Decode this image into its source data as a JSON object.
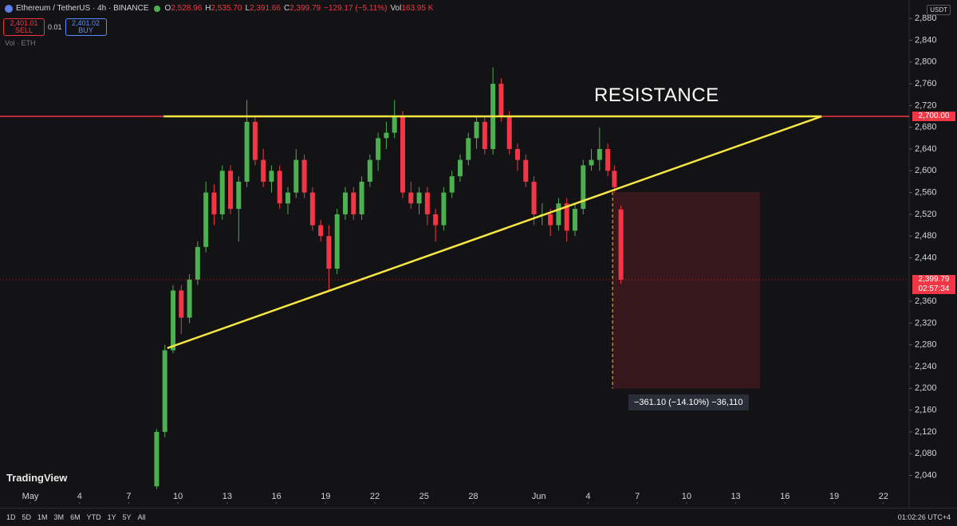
{
  "header": {
    "symbol": "Ethereum / TetherUS · 4h · BINANCE",
    "ohlc": [
      {
        "key": "O",
        "value": "2,528.96"
      },
      {
        "key": "H",
        "value": "2,535.70"
      },
      {
        "key": "L",
        "value": "2,391.66"
      },
      {
        "key": "C",
        "value": "2,399.79"
      }
    ],
    "change": "−129.17 (−5.11%)",
    "vol_key": "Vol",
    "vol": "163.95 K",
    "sell_price": "2,401.01",
    "sell": "SELL",
    "spread": "0.01",
    "buy_price": "2,401.02",
    "buy": "BUY",
    "vol_label": "Vol · ETH",
    "currency": "USDT"
  },
  "logo": "TradingView",
  "toolbar": {
    "ranges": [
      "1D",
      "5D",
      "1M",
      "3M",
      "6M",
      "YTD",
      "1Y",
      "5Y",
      "All"
    ],
    "time": "01:02:26 UTC+4"
  },
  "chart_data": {
    "type": "candlestick",
    "up_color": "#4caf50",
    "down_color": "#f23645",
    "xlim": [
      -1.85,
      53.57
    ],
    "ylim": [
      1988,
      2914
    ],
    "xticks": [
      {
        "value": 0,
        "label": "May"
      },
      {
        "value": 3,
        "label": "4"
      },
      {
        "value": 6,
        "label": "7"
      },
      {
        "value": 9,
        "label": "10"
      },
      {
        "value": 12,
        "label": "13"
      },
      {
        "value": 15,
        "label": "16"
      },
      {
        "value": 18,
        "label": "19"
      },
      {
        "value": 21,
        "label": "22"
      },
      {
        "value": 24,
        "label": "25"
      },
      {
        "value": 27,
        "label": "28"
      },
      {
        "value": 31,
        "label": "Jun"
      },
      {
        "value": 34,
        "label": "4"
      },
      {
        "value": 37,
        "label": "7"
      },
      {
        "value": 40,
        "label": "10"
      },
      {
        "value": 43,
        "label": "13"
      },
      {
        "value": 46,
        "label": "16"
      },
      {
        "value": 49,
        "label": "19"
      },
      {
        "value": 52,
        "label": "22"
      }
    ],
    "yticks": [
      {
        "value": 2040,
        "label": "2,040"
      },
      {
        "value": 2080,
        "label": "2,080"
      },
      {
        "value": 2120,
        "label": "2,120"
      },
      {
        "value": 2160,
        "label": "2,160"
      },
      {
        "value": 2200,
        "label": "2,200"
      },
      {
        "value": 2240,
        "label": "2,240"
      },
      {
        "value": 2280,
        "label": "2,280"
      },
      {
        "value": 2320,
        "label": "2,320"
      },
      {
        "value": 2360,
        "label": "2,360"
      },
      {
        "value": 2440,
        "label": "2,440"
      },
      {
        "value": 2480,
        "label": "2,480"
      },
      {
        "value": 2520,
        "label": "2,520"
      },
      {
        "value": 2560,
        "label": "2,560"
      },
      {
        "value": 2600,
        "label": "2,600"
      },
      {
        "value": 2640,
        "label": "2,640"
      },
      {
        "value": 2680,
        "label": "2,680"
      },
      {
        "value": 2720,
        "label": "2,720"
      },
      {
        "value": 2760,
        "label": "2,760"
      },
      {
        "value": 2800,
        "label": "2,800"
      },
      {
        "value": 2840,
        "label": "2,840"
      },
      {
        "value": 2880,
        "label": "2,880"
      }
    ],
    "grid": false,
    "candles": [
      [
        7.7,
        2020,
        2125,
        2015,
        2120
      ],
      [
        8.2,
        2120,
        2280,
        2110,
        2270
      ],
      [
        8.7,
        2270,
        2390,
        2265,
        2380
      ],
      [
        9.2,
        2380,
        2390,
        2300,
        2330
      ],
      [
        9.7,
        2330,
        2410,
        2320,
        2400
      ],
      [
        10.2,
        2400,
        2470,
        2390,
        2460
      ],
      [
        10.7,
        2460,
        2580,
        2450,
        2560
      ],
      [
        11.2,
        2560,
        2575,
        2500,
        2520
      ],
      [
        11.7,
        2520,
        2610,
        2510,
        2600
      ],
      [
        12.2,
        2600,
        2610,
        2520,
        2530
      ],
      [
        12.7,
        2530,
        2590,
        2470,
        2580
      ],
      [
        13.2,
        2580,
        2730,
        2570,
        2690
      ],
      [
        13.7,
        2690,
        2700,
        2610,
        2620
      ],
      [
        14.2,
        2620,
        2640,
        2570,
        2580
      ],
      [
        14.7,
        2580,
        2610,
        2560,
        2600
      ],
      [
        15.2,
        2600,
        2610,
        2530,
        2540
      ],
      [
        15.7,
        2540,
        2570,
        2520,
        2560
      ],
      [
        16.2,
        2560,
        2640,
        2550,
        2620
      ],
      [
        16.7,
        2620,
        2630,
        2550,
        2560
      ],
      [
        17.2,
        2560,
        2570,
        2490,
        2500
      ],
      [
        17.7,
        2500,
        2510,
        2470,
        2480
      ],
      [
        18.2,
        2480,
        2500,
        2380,
        2420
      ],
      [
        18.7,
        2420,
        2530,
        2410,
        2520
      ],
      [
        19.2,
        2520,
        2570,
        2510,
        2560
      ],
      [
        19.7,
        2560,
        2570,
        2510,
        2520
      ],
      [
        20.2,
        2520,
        2590,
        2510,
        2580
      ],
      [
        20.7,
        2580,
        2630,
        2570,
        2620
      ],
      [
        21.2,
        2620,
        2670,
        2600,
        2660
      ],
      [
        21.7,
        2660,
        2690,
        2640,
        2670
      ],
      [
        22.2,
        2670,
        2730,
        2660,
        2700
      ],
      [
        22.7,
        2700,
        2710,
        2550,
        2560
      ],
      [
        23.2,
        2560,
        2580,
        2530,
        2540
      ],
      [
        23.7,
        2540,
        2570,
        2520,
        2560
      ],
      [
        24.2,
        2560,
        2570,
        2500,
        2520
      ],
      [
        24.7,
        2520,
        2530,
        2470,
        2500
      ],
      [
        25.2,
        2500,
        2570,
        2490,
        2560
      ],
      [
        25.7,
        2560,
        2600,
        2550,
        2590
      ],
      [
        26.2,
        2590,
        2630,
        2580,
        2620
      ],
      [
        26.7,
        2620,
        2670,
        2610,
        2660
      ],
      [
        27.2,
        2660,
        2700,
        2640,
        2690
      ],
      [
        27.7,
        2690,
        2700,
        2630,
        2640
      ],
      [
        28.2,
        2640,
        2790,
        2630,
        2760
      ],
      [
        28.7,
        2760,
        2770,
        2690,
        2700
      ],
      [
        29.2,
        2700,
        2710,
        2630,
        2640
      ],
      [
        29.7,
        2640,
        2650,
        2600,
        2620
      ],
      [
        30.2,
        2620,
        2630,
        2570,
        2580
      ],
      [
        30.7,
        2580,
        2590,
        2500,
        2520
      ],
      [
        31.2,
        2520,
        2540,
        2500,
        2520
      ],
      [
        31.7,
        2520,
        2530,
        2480,
        2500
      ],
      [
        32.2,
        2500,
        2550,
        2490,
        2540
      ],
      [
        32.7,
        2540,
        2550,
        2470,
        2490
      ],
      [
        33.2,
        2490,
        2540,
        2480,
        2530
      ],
      [
        33.7,
        2530,
        2620,
        2520,
        2610
      ],
      [
        34.2,
        2610,
        2640,
        2600,
        2620
      ],
      [
        34.7,
        2620,
        2680,
        2600,
        2640
      ],
      [
        35.2,
        2640,
        2650,
        2590,
        2600
      ],
      [
        35.6,
        2600,
        2610,
        2560,
        2570
      ],
      [
        36.0,
        2528.96,
        2535.7,
        2391.66,
        2399.79
      ]
    ],
    "resistance": {
      "value": 2700,
      "label": "2,700.00",
      "color": "#f23645"
    },
    "resistance_text": "RESISTANCE",
    "resistance_line": [
      [
        8.12,
        2700
      ],
      [
        48.23,
        2700
      ]
    ],
    "trendline": [
      [
        8.35,
        2274
      ],
      [
        48.23,
        2700
      ]
    ],
    "line_color": "#f5e642",
    "last_price": {
      "value": 2399.79,
      "label": "2,399.79"
    },
    "countdown": "02:57:34",
    "measure": {
      "x_start": 35.49,
      "x_end": 44.48,
      "from": 2560.89,
      "to": 2199.79,
      "label": "−361.10 (−14.10%) −36,110"
    }
  }
}
